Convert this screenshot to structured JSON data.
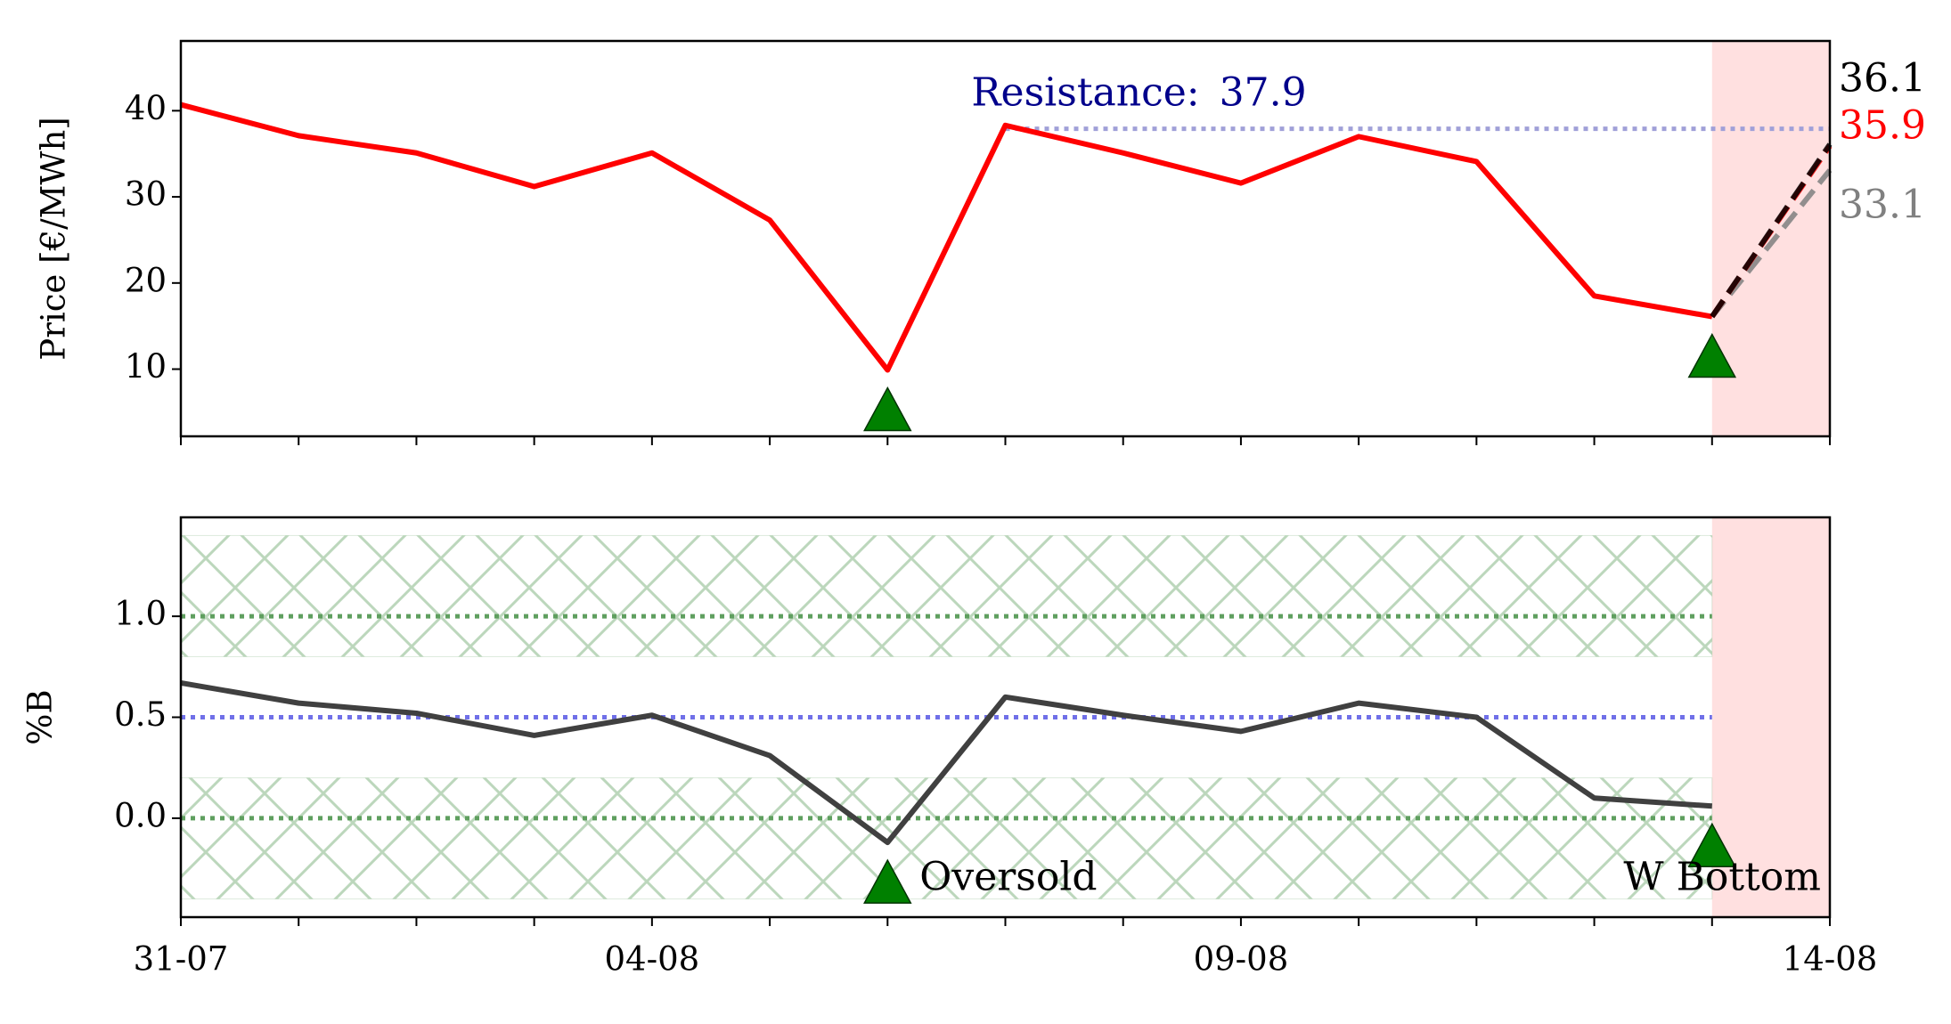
{
  "chart_data": [
    {
      "type": "line",
      "ylabel": "Price [€/MWh]",
      "series": [
        {
          "color": "#ff0000",
          "values": [
            40.7,
            37.1,
            35.1,
            31.2,
            35.1,
            27.3,
            9.9,
            38.3,
            35.1,
            31.6,
            37.0,
            34.1,
            18.5,
            16.1,
            null
          ]
        }
      ],
      "forecasts": [
        {
          "value": 36.1,
          "color": "#000000"
        },
        {
          "value": 35.9,
          "color": "#ff0000"
        },
        {
          "value": 33.1,
          "color": "#808080"
        }
      ],
      "resistance_label": "Resistance:",
      "resistance": 37.9,
      "resistance_color": "#a0a0d8",
      "signals": [
        6,
        13
      ],
      "signal_color": "#008000",
      "forecast_color": "#ffe0e0",
      "ylim": [
        2.2,
        48.1
      ],
      "yticks": [
        10,
        20,
        30,
        40
      ]
    },
    {
      "type": "line",
      "ylabel": "%B",
      "categories": [
        "31-07",
        null,
        null,
        null,
        "04-08",
        null,
        null,
        null,
        null,
        "09-08",
        null,
        null,
        null,
        null,
        "14-08"
      ],
      "series": [
        {
          "color": "#404040",
          "values": [
            0.67,
            0.57,
            0.52,
            0.41,
            0.51,
            0.31,
            -0.12,
            0.6,
            0.51,
            0.43,
            0.57,
            0.5,
            0.1,
            0.06,
            null
          ]
        }
      ],
      "bands": [
        [
          0.8,
          1.4
        ],
        [
          -0.4,
          0.2
        ]
      ],
      "band_color": "#8fbc8f",
      "reference_lines": [
        {
          "value": 1.0,
          "color": "#5f9f5f"
        },
        {
          "value": 0.5,
          "color": "#7070e8"
        },
        {
          "value": 0.0,
          "color": "#5f9f5f"
        }
      ],
      "signals": [
        6,
        13
      ],
      "signal_color": "#008000",
      "forecast_color": "#ffe0e0",
      "annotations": [
        {
          "text": "Oversold",
          "index": 6
        },
        {
          "text": "W Bottom",
          "index": 13
        }
      ],
      "ylim": [
        -0.49,
        1.49
      ],
      "yticks": [
        {
          "value": 0,
          "label": "0.0"
        },
        0.5,
        {
          "value": 1,
          "label": "1.0"
        }
      ]
    }
  ]
}
